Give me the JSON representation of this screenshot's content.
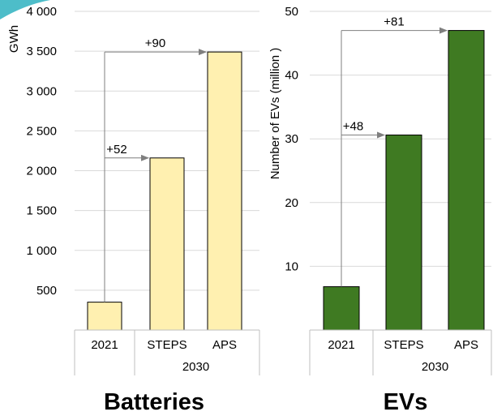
{
  "colors": {
    "batteries_bar": "#fff0b0",
    "evs_bar": "#3f7a22",
    "bar_border": "#000000",
    "grid": "#d9d9d9",
    "arrow": "#7f7f7f",
    "corner_accent": "#4dbdc9"
  },
  "chart_data": [
    {
      "type": "bar",
      "title": "Batteries",
      "ylabel": "GWh",
      "ylim": [
        0,
        4000
      ],
      "yticks": [
        500,
        1000,
        1500,
        2000,
        2500,
        3000,
        3500,
        4000
      ],
      "ytick_labels": [
        "500",
        "1 000",
        "1 500",
        "2 000",
        "2 500",
        "3 000",
        "3 500",
        "4 000"
      ],
      "categories": [
        "2021",
        "STEPS",
        "APS"
      ],
      "group_label": "2030",
      "values": [
        350,
        2160,
        3490
      ],
      "annotations": [
        {
          "text": "+52",
          "from": "2021",
          "to": "STEPS",
          "at_value": 2160
        },
        {
          "text": "+90",
          "from": "2021",
          "to": "APS",
          "at_value": 3490
        }
      ],
      "grid": true
    },
    {
      "type": "bar",
      "title": "EVs",
      "ylabel": "Number of EVs (million )",
      "ylim": [
        0,
        50
      ],
      "yticks": [
        10,
        20,
        30,
        40,
        50
      ],
      "ytick_labels": [
        "10",
        "20",
        "30",
        "40",
        "50"
      ],
      "categories": [
        "2021",
        "STEPS",
        "APS"
      ],
      "group_label": "2030",
      "values": [
        6.8,
        30.6,
        47
      ],
      "annotations": [
        {
          "text": "+48",
          "from": "2021",
          "to": "STEPS",
          "at_value": 30.6
        },
        {
          "text": "+81",
          "from": "2021",
          "to": "APS",
          "at_value": 47
        }
      ],
      "grid": true
    }
  ]
}
